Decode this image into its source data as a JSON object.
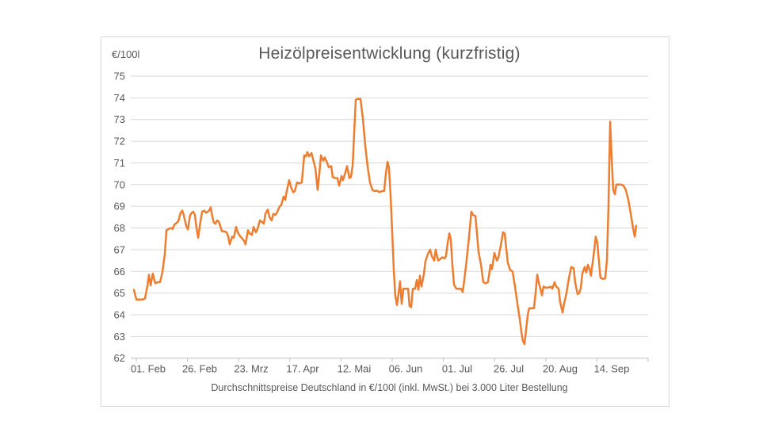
{
  "chart_data": {
    "type": "line",
    "title": "Heizölpreisentwicklung (kurzfristig)",
    "y_axis_unit": "€/100l",
    "caption": "Durchschnittspreise Deutschland in €/100l (inkl. MwSt.) bei 3.000 Liter Bestellung",
    "x_tick_labels": [
      "01. Feb",
      "26. Feb",
      "23. Mrz",
      "17. Apr",
      "12. Mai",
      "06. Jun",
      "01. Jul",
      "26. Jul",
      "20. Aug",
      "14. Sep"
    ],
    "y_tick_labels": [
      "75",
      "74",
      "73",
      "72",
      "71",
      "70",
      "69",
      "68",
      "67",
      "66",
      "65",
      "64",
      "63",
      "62"
    ],
    "ylim": [
      62,
      75
    ],
    "x_unit": "days since series start (series starts a few days before 01. Feb, ends late Sep)",
    "x_tick_spacing_days": 25,
    "grid": "horizontal only",
    "legend": "none",
    "line_color": "#ED7D31",
    "points": [
      [
        0,
        65.15
      ],
      [
        1.2,
        64.7
      ],
      [
        4.2,
        64.7
      ],
      [
        5.4,
        64.75
      ],
      [
        6.5,
        65.3
      ],
      [
        7.3,
        65.85
      ],
      [
        8.1,
        65.35
      ],
      [
        9.2,
        65.9
      ],
      [
        10.4,
        65.45
      ],
      [
        11.5,
        65.5
      ],
      [
        12.7,
        65.5
      ],
      [
        13.8,
        65.95
      ],
      [
        15,
        66.8
      ],
      [
        15.8,
        67.9
      ],
      [
        16.9,
        67.95
      ],
      [
        18.1,
        68.0
      ],
      [
        18.8,
        67.95
      ],
      [
        19.6,
        68.15
      ],
      [
        21.5,
        68.3
      ],
      [
        22.7,
        68.7
      ],
      [
        23.5,
        68.8
      ],
      [
        24.2,
        68.6
      ],
      [
        25.4,
        68.1
      ],
      [
        26.2,
        67.93
      ],
      [
        27.3,
        68.6
      ],
      [
        28.1,
        68.7
      ],
      [
        28.8,
        68.75
      ],
      [
        29.6,
        68.6
      ],
      [
        30.4,
        68.0
      ],
      [
        31.2,
        67.55
      ],
      [
        32.3,
        68.3
      ],
      [
        33.1,
        68.75
      ],
      [
        34.2,
        68.8
      ],
      [
        35,
        68.7
      ],
      [
        35.8,
        68.75
      ],
      [
        36.5,
        68.8
      ],
      [
        37.3,
        68.95
      ],
      [
        38.1,
        68.5
      ],
      [
        38.8,
        68.25
      ],
      [
        39.6,
        68.2
      ],
      [
        40.4,
        68.35
      ],
      [
        41.2,
        68.3
      ],
      [
        41.9,
        68.1
      ],
      [
        42.7,
        67.85
      ],
      [
        43.8,
        67.85
      ],
      [
        45,
        67.8
      ],
      [
        45.8,
        67.6
      ],
      [
        46.5,
        67.25
      ],
      [
        47.7,
        67.6
      ],
      [
        48.5,
        67.55
      ],
      [
        49.6,
        68.05
      ],
      [
        50.4,
        67.8
      ],
      [
        51.5,
        67.63
      ],
      [
        52.7,
        67.5
      ],
      [
        53.5,
        67.4
      ],
      [
        54.2,
        67.25
      ],
      [
        55.4,
        67.9
      ],
      [
        56.2,
        67.75
      ],
      [
        57.3,
        67.68
      ],
      [
        58.1,
        68.05
      ],
      [
        59.2,
        67.8
      ],
      [
        60,
        67.95
      ],
      [
        61.2,
        68.35
      ],
      [
        61.9,
        68.3
      ],
      [
        63.1,
        68.2
      ],
      [
        63.8,
        68.65
      ],
      [
        65,
        68.85
      ],
      [
        65.8,
        68.5
      ],
      [
        66.9,
        68.35
      ],
      [
        67.7,
        68.65
      ],
      [
        68.8,
        68.6
      ],
      [
        69.6,
        68.75
      ],
      [
        70.8,
        69.0
      ],
      [
        71.5,
        69.05
      ],
      [
        72.7,
        69.45
      ],
      [
        73.5,
        69.3
      ],
      [
        74.2,
        69.7
      ],
      [
        75.4,
        70.2
      ],
      [
        76.2,
        69.9
      ],
      [
        77.3,
        69.65
      ],
      [
        78.1,
        69.7
      ],
      [
        79.2,
        70.1
      ],
      [
        80.4,
        70.05
      ],
      [
        81.5,
        70.1
      ],
      [
        82.7,
        71.35
      ],
      [
        83.5,
        71.3
      ],
      [
        84.2,
        71.5
      ],
      [
        85,
        71.3
      ],
      [
        86.2,
        71.45
      ],
      [
        86.9,
        71.2
      ],
      [
        88.1,
        70.75
      ],
      [
        89.2,
        69.75
      ],
      [
        90,
        70.5
      ],
      [
        90.8,
        71.35
      ],
      [
        91.9,
        71.1
      ],
      [
        92.7,
        71.25
      ],
      [
        93.8,
        71.0
      ],
      [
        94.6,
        70.8
      ],
      [
        95.8,
        70.85
      ],
      [
        96.5,
        70.35
      ],
      [
        97.7,
        70.3
      ],
      [
        98.8,
        70.3
      ],
      [
        99.6,
        69.95
      ],
      [
        100.8,
        70.4
      ],
      [
        101.5,
        70.2
      ],
      [
        102.3,
        70.45
      ],
      [
        103.5,
        70.85
      ],
      [
        104.6,
        70.3
      ],
      [
        105.4,
        70.35
      ],
      [
        106.2,
        70.9
      ],
      [
        106.9,
        72.3
      ],
      [
        107.7,
        73.9
      ],
      [
        108.5,
        73.95
      ],
      [
        110,
        73.95
      ],
      [
        111.2,
        73.0
      ],
      [
        112.3,
        71.8
      ],
      [
        113.5,
        70.8
      ],
      [
        114.6,
        70.1
      ],
      [
        115.8,
        69.75
      ],
      [
        116.9,
        69.7
      ],
      [
        118.1,
        69.72
      ],
      [
        119.2,
        69.65
      ],
      [
        120.4,
        69.7
      ],
      [
        121.5,
        69.7
      ],
      [
        122.3,
        70.5
      ],
      [
        123.1,
        71.05
      ],
      [
        123.8,
        70.8
      ],
      [
        124.6,
        69.5
      ],
      [
        125.4,
        67.8
      ],
      [
        126.2,
        66.0
      ],
      [
        126.9,
        64.9
      ],
      [
        127.7,
        64.45
      ],
      [
        128.5,
        65.0
      ],
      [
        129.2,
        65.55
      ],
      [
        130,
        64.5
      ],
      [
        130.8,
        65.2
      ],
      [
        131.9,
        65.2
      ],
      [
        133.1,
        65.2
      ],
      [
        133.8,
        64.4
      ],
      [
        134.6,
        64.35
      ],
      [
        135.4,
        65.2
      ],
      [
        136.5,
        65.2
      ],
      [
        137.3,
        65.6
      ],
      [
        138.1,
        65.15
      ],
      [
        138.8,
        65.8
      ],
      [
        139.6,
        65.3
      ],
      [
        140.8,
        65.9
      ],
      [
        141.5,
        66.45
      ],
      [
        142.7,
        66.8
      ],
      [
        143.8,
        67.0
      ],
      [
        144.6,
        66.7
      ],
      [
        145.8,
        66.5
      ],
      [
        146.5,
        67.0
      ],
      [
        147.7,
        66.5
      ],
      [
        148.5,
        66.55
      ],
      [
        149.6,
        66.65
      ],
      [
        150.8,
        66.6
      ],
      [
        151.5,
        66.7
      ],
      [
        152.3,
        67.3
      ],
      [
        153.1,
        67.75
      ],
      [
        153.8,
        67.5
      ],
      [
        154.6,
        66.3
      ],
      [
        155.4,
        65.4
      ],
      [
        156.5,
        65.2
      ],
      [
        157.7,
        65.2
      ],
      [
        158.8,
        65.2
      ],
      [
        159.6,
        65.05
      ],
      [
        160.4,
        65.6
      ],
      [
        161.5,
        66.5
      ],
      [
        162.7,
        67.6
      ],
      [
        163.8,
        68.75
      ],
      [
        164.6,
        68.6
      ],
      [
        165.8,
        68.55
      ],
      [
        166.5,
        67.8
      ],
      [
        167.3,
        66.9
      ],
      [
        168.5,
        66.3
      ],
      [
        169.6,
        65.5
      ],
      [
        170.8,
        65.45
      ],
      [
        171.9,
        65.5
      ],
      [
        173.1,
        66.3
      ],
      [
        173.8,
        66.1
      ],
      [
        175,
        66.85
      ],
      [
        176.2,
        66.5
      ],
      [
        176.9,
        66.6
      ],
      [
        178.1,
        67.2
      ],
      [
        179.2,
        67.8
      ],
      [
        180,
        67.75
      ],
      [
        180.8,
        67.0
      ],
      [
        181.5,
        66.4
      ],
      [
        182.7,
        66.05
      ],
      [
        183.8,
        66.0
      ],
      [
        185,
        65.3
      ],
      [
        186.2,
        64.5
      ],
      [
        187.3,
        63.8
      ],
      [
        188.1,
        63.2
      ],
      [
        188.8,
        62.8
      ],
      [
        189.6,
        62.65
      ],
      [
        190.4,
        63.3
      ],
      [
        191.2,
        64.0
      ],
      [
        191.9,
        64.3
      ],
      [
        193.1,
        64.3
      ],
      [
        194.2,
        64.3
      ],
      [
        195,
        65.0
      ],
      [
        195.8,
        65.85
      ],
      [
        196.5,
        65.5
      ],
      [
        197.3,
        65.2
      ],
      [
        198.1,
        64.9
      ],
      [
        198.8,
        65.3
      ],
      [
        200,
        65.25
      ],
      [
        201.2,
        65.25
      ],
      [
        202.3,
        65.3
      ],
      [
        203.1,
        65.2
      ],
      [
        204.2,
        65.5
      ],
      [
        205,
        65.3
      ],
      [
        206.2,
        65.2
      ],
      [
        206.9,
        64.6
      ],
      [
        208.1,
        64.1
      ],
      [
        208.8,
        64.5
      ],
      [
        210,
        65.0
      ],
      [
        211.2,
        65.7
      ],
      [
        212.3,
        66.2
      ],
      [
        213.5,
        66.15
      ],
      [
        214.2,
        65.5
      ],
      [
        215.4,
        64.95
      ],
      [
        216.2,
        65.0
      ],
      [
        216.9,
        65.2
      ],
      [
        217.7,
        65.9
      ],
      [
        218.8,
        66.2
      ],
      [
        219.6,
        65.95
      ],
      [
        220.4,
        66.3
      ],
      [
        221.2,
        66.1
      ],
      [
        221.9,
        65.8
      ],
      [
        222.7,
        66.4
      ],
      [
        223.5,
        67.0
      ],
      [
        224.2,
        67.6
      ],
      [
        225,
        67.3
      ],
      [
        225.8,
        66.4
      ],
      [
        226.5,
        65.7
      ],
      [
        227.7,
        65.65
      ],
      [
        228.8,
        65.68
      ],
      [
        229.6,
        66.5
      ],
      [
        230.4,
        69.0
      ],
      [
        231.2,
        72.9
      ],
      [
        231.9,
        71.3
      ],
      [
        232.7,
        69.75
      ],
      [
        233.5,
        69.55
      ],
      [
        234.2,
        70.0
      ],
      [
        235.4,
        70.0
      ],
      [
        236.5,
        70.0
      ],
      [
        237.7,
        69.95
      ],
      [
        238.8,
        69.75
      ],
      [
        240,
        69.3
      ],
      [
        241.2,
        68.65
      ],
      [
        242.3,
        68.0
      ],
      [
        243.1,
        67.6
      ],
      [
        243.8,
        68.1
      ]
    ]
  },
  "colors": {
    "line": "#ED7D31",
    "gridline": "#D9D9D9",
    "axis": "#BFBFBF",
    "text": "#595959",
    "card_border": "#D7D7D7",
    "background": "#FFFFFF"
  }
}
